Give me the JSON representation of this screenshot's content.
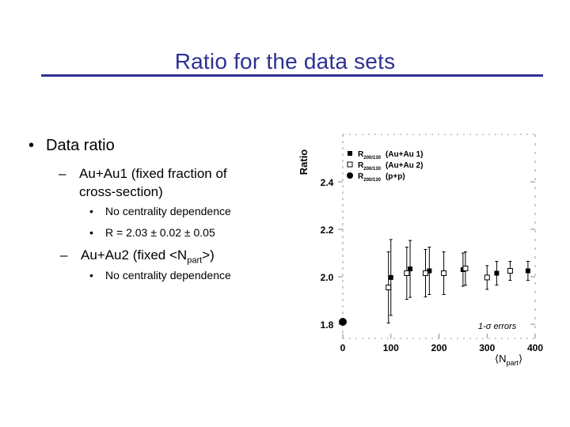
{
  "slide": {
    "title": "Ratio for the data sets",
    "bullet1": "Data ratio",
    "sub1_line1": "Au+Au1 (fixed fraction of",
    "sub1_line2": "cross-section)",
    "sub1_items": [
      "No centrality dependence",
      "R = 2.03 ± 0.02 ± 0.05"
    ],
    "sub2_prefix": "Au+Au2 (fixed <N",
    "sub2_subscript": "part",
    "sub2_suffix": ">)",
    "sub2_items": [
      "No centrality dependence"
    ],
    "bullet_glyph": "•",
    "dash_glyph": "–"
  },
  "colors": {
    "title": "#2e3192",
    "text": "#000000",
    "plot": "#000000"
  },
  "chart_data": {
    "type": "scatter",
    "ylabel": "Ratio",
    "xlabel_main": "⟨N",
    "xlabel_sub": "part",
    "xlabel_end": "⟩",
    "x_ticks": [
      0,
      100,
      200,
      300,
      400
    ],
    "y_ticks": [
      1.8,
      2.0,
      2.2,
      2.4
    ],
    "xlim": [
      0,
      400
    ],
    "ylim": [
      1.8,
      2.6
    ],
    "annotation": "1-σ errors",
    "legend": [
      {
        "marker": "square-filled",
        "subscript": "200/130",
        "label": "(Au+Au 1)"
      },
      {
        "marker": "square-open",
        "subscript": "200/130",
        "label": "(Au+Au 2)"
      },
      {
        "marker": "circle-filled",
        "subscript": "200/130",
        "label": "(p+p)"
      }
    ],
    "legend_prefix": "R",
    "series": [
      {
        "name": "(Au+Au 1)",
        "marker": "square-filled",
        "points": [
          {
            "x": 100,
            "y": 1.997,
            "err": 0.16
          },
          {
            "x": 140,
            "y": 2.033,
            "err": 0.12
          },
          {
            "x": 180,
            "y": 2.025,
            "err": 0.1
          },
          {
            "x": 250,
            "y": 2.03,
            "err": 0.07
          },
          {
            "x": 320,
            "y": 2.015,
            "err": 0.05
          },
          {
            "x": 385,
            "y": 2.025,
            "err": 0.04
          }
        ]
      },
      {
        "name": "(Au+Au 2)",
        "marker": "square-open",
        "points": [
          {
            "x": 95,
            "y": 1.955,
            "err": 0.15
          },
          {
            "x": 133,
            "y": 2.015,
            "err": 0.11
          },
          {
            "x": 172,
            "y": 2.015,
            "err": 0.1
          },
          {
            "x": 210,
            "y": 2.015,
            "err": 0.09
          },
          {
            "x": 255,
            "y": 2.035,
            "err": 0.07
          },
          {
            "x": 300,
            "y": 1.997,
            "err": 0.05
          },
          {
            "x": 348,
            "y": 2.025,
            "err": 0.04
          }
        ]
      },
      {
        "name": "(p+p)",
        "marker": "circle-filled",
        "points": [
          {
            "x": 0,
            "y": 1.81,
            "err": 0
          }
        ]
      }
    ]
  }
}
